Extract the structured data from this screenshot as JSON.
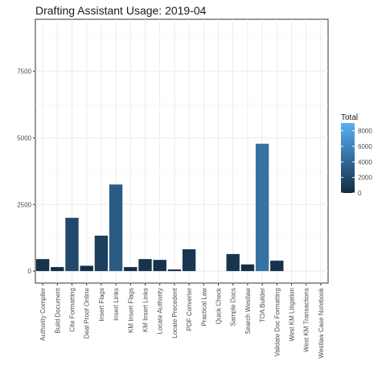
{
  "chart_data": {
    "type": "bar",
    "title": "Drafting Assistant Usage: 2019-04",
    "xlabel": "",
    "ylabel": "",
    "categories": [
      "Authority Compiler",
      "Build Document",
      "Cite Formatting",
      "Deal Proof Online",
      "Insert Flags",
      "Insert Links",
      "KM Insert Flags",
      "KM Insert Links",
      "Locate Authority",
      "Locate Precedent",
      "PDF Converter",
      "Practical Law",
      "Quick Check",
      "Sample Docs",
      "Search Westlaw",
      "TOA Builder",
      "Validate Doc Formatting",
      "West KM Litigation",
      "West KM Transactions",
      "Westlaw Case Notebook"
    ],
    "values": [
      450,
      150,
      2000,
      200,
      1330,
      3250,
      150,
      450,
      420,
      60,
      820,
      0,
      0,
      640,
      250,
      4780,
      390,
      0,
      0,
      0
    ],
    "ylim": [
      -450,
      9450
    ],
    "yticks": [
      0,
      2500,
      5000,
      7500
    ],
    "grid": true,
    "legend": {
      "title": "Total",
      "position": "right",
      "ticks": [
        0,
        2000,
        4000,
        6000,
        8000
      ],
      "range": [
        0,
        9000
      ],
      "color_low": "#132B43",
      "color_high": "#56B1F7"
    }
  }
}
